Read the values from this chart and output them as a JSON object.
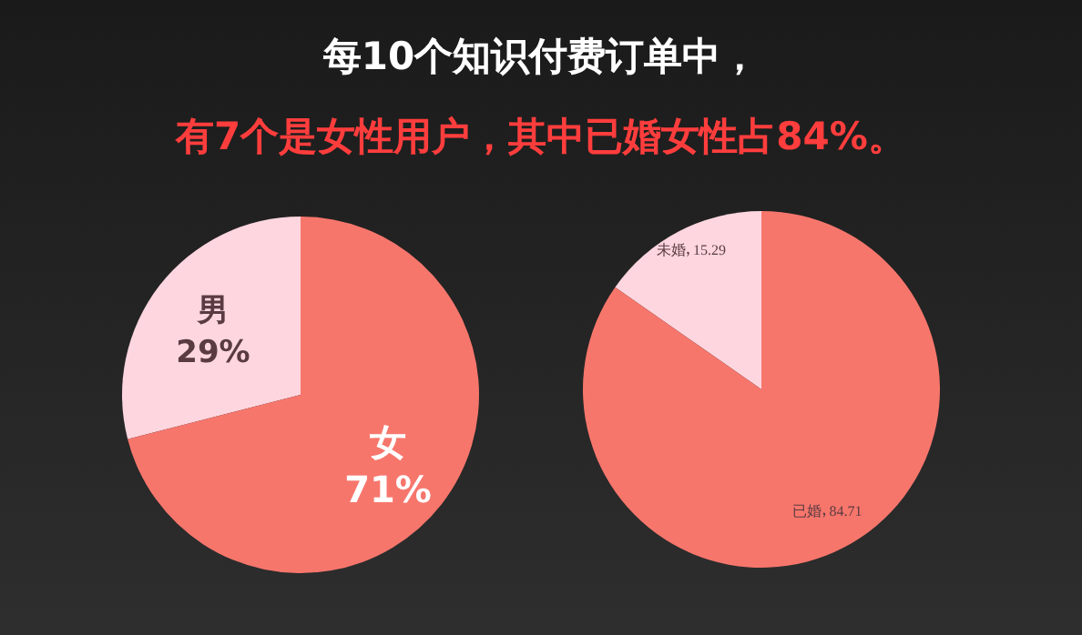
{
  "chart_data": [
    {
      "type": "pie",
      "title": "每10个知识付费订单中，",
      "subtitle": "有7个是女性用户，其中已婚女性占84%。",
      "categories": [
        "男",
        "女"
      ],
      "values": [
        29,
        71
      ],
      "colors": [
        "#fdd6df",
        "#f7766c"
      ],
      "value_labels": [
        "29%",
        "71%"
      ],
      "legend": false
    },
    {
      "type": "pie",
      "categories": [
        "未婚",
        "已婚"
      ],
      "values": [
        15.29,
        84.71
      ],
      "colors": [
        "#fdd6df",
        "#f7766c"
      ],
      "data_labels": true,
      "legend": false
    }
  ]
}
